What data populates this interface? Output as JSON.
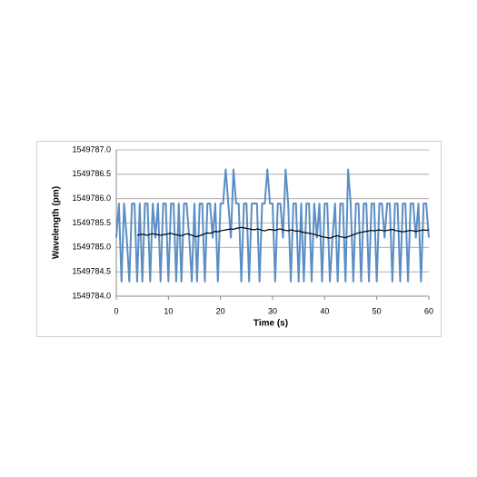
{
  "chart_data": {
    "type": "line",
    "x_label": "Time (s)",
    "y_label": "Wavelength (pm)",
    "x": [
      0,
      0.5,
      1,
      1.5,
      2,
      2.5,
      3,
      3.5,
      4,
      4.5,
      5,
      5.5,
      6,
      6.5,
      7,
      7.5,
      8,
      8.5,
      9,
      9.5,
      10,
      10.5,
      11,
      11.5,
      12,
      12.5,
      13,
      13.5,
      14,
      14.5,
      15,
      15.5,
      16,
      16.5,
      17,
      17.5,
      18,
      18.5,
      19,
      19.5,
      20,
      20.5,
      21,
      21.5,
      22,
      22.5,
      23,
      23.5,
      24,
      24.5,
      25,
      25.5,
      26,
      26.5,
      27,
      27.5,
      28,
      28.5,
      29,
      29.5,
      30,
      30.5,
      31,
      31.5,
      32,
      32.5,
      33,
      33.5,
      34,
      34.5,
      35,
      35.5,
      36,
      36.5,
      37,
      37.5,
      38,
      38.5,
      39,
      39.5,
      40,
      40.5,
      41,
      41.5,
      42,
      42.5,
      43,
      43.5,
      44,
      44.5,
      45,
      45.5,
      46,
      46.5,
      47,
      47.5,
      48,
      48.5,
      49,
      49.5,
      50,
      50.5,
      51,
      51.5,
      52,
      52.5,
      53,
      53.5,
      54,
      54.5,
      55,
      55.5,
      56,
      56.5,
      57,
      57.5,
      58,
      58.5,
      59,
      59.5,
      60
    ],
    "series": [
      {
        "color": "#5b8ec4",
        "width": 2,
        "values": [
          1549785.2,
          1549785.9,
          1549784.3,
          1549785.9,
          1549785.2,
          1549784.3,
          1549785.9,
          1549785.9,
          1549784.3,
          1549785.9,
          1549784.3,
          1549785.9,
          1549785.9,
          1549784.3,
          1549785.9,
          1549785.2,
          1549785.9,
          1549784.3,
          1549785.9,
          1549785.9,
          1549784.3,
          1549785.9,
          1549785.9,
          1549784.3,
          1549785.9,
          1549784.3,
          1549785.9,
          1549785.9,
          1549785.2,
          1549784.3,
          1549785.9,
          1549784.3,
          1549785.9,
          1549785.9,
          1549784.3,
          1549785.9,
          1549785.9,
          1549785.2,
          1549785.9,
          1549784.3,
          1549785.9,
          1549785.9,
          1549786.6,
          1549785.9,
          1549785.2,
          1549786.6,
          1549785.9,
          1549785.9,
          1549784.3,
          1549785.9,
          1549785.9,
          1549784.3,
          1549785.9,
          1549785.9,
          1549785.9,
          1549784.3,
          1549785.9,
          1549785.9,
          1549786.6,
          1549785.9,
          1549785.9,
          1549784.3,
          1549785.9,
          1549785.9,
          1549785.2,
          1549786.6,
          1549785.9,
          1549784.3,
          1549785.9,
          1549785.9,
          1549784.3,
          1549785.9,
          1549784.3,
          1549785.9,
          1549785.9,
          1549784.3,
          1549785.9,
          1549785.2,
          1549785.9,
          1549784.3,
          1549785.9,
          1549785.9,
          1549784.3,
          1549785.2,
          1549785.9,
          1549784.3,
          1549785.9,
          1549785.9,
          1549784.3,
          1549786.6,
          1549785.9,
          1549784.3,
          1549785.9,
          1549785.9,
          1549784.3,
          1549785.9,
          1549785.9,
          1549784.3,
          1549785.9,
          1549785.9,
          1549784.3,
          1549785.9,
          1549785.9,
          1549785.2,
          1549785.9,
          1549785.9,
          1549784.3,
          1549785.9,
          1549785.9,
          1549784.3,
          1549785.9,
          1549785.9,
          1549784.3,
          1549785.9,
          1549785.9,
          1549785.2,
          1549785.9,
          1549784.3,
          1549785.9,
          1549785.9,
          1549785.2
        ]
      },
      {
        "color": "#000000",
        "width": 1.2,
        "values": [
          null,
          null,
          null,
          null,
          null,
          null,
          null,
          null,
          1549785.25,
          1549785.26,
          1549785.27,
          1549785.26,
          1549785.25,
          1549785.27,
          1549785.28,
          1549785.27,
          1549785.26,
          1549785.25,
          1549785.26,
          1549785.27,
          1549785.28,
          1549785.29,
          1549785.27,
          1549785.26,
          1549785.25,
          1549785.24,
          1549785.26,
          1549785.28,
          1549785.27,
          1549785.25,
          1549785.23,
          1549785.22,
          1549785.24,
          1549785.26,
          1549785.28,
          1549785.3,
          1549785.29,
          1549785.31,
          1549785.33,
          1549785.32,
          1549785.34,
          1549785.35,
          1549785.36,
          1549785.37,
          1549785.38,
          1549785.37,
          1549785.39,
          1549785.4,
          1549785.41,
          1549785.4,
          1549785.39,
          1549785.38,
          1549785.37,
          1549785.36,
          1549785.38,
          1549785.37,
          1549785.35,
          1549785.34,
          1549785.36,
          1549785.37,
          1549785.36,
          1549785.35,
          1549785.37,
          1549785.38,
          1549785.36,
          1549785.35,
          1549785.34,
          1549785.36,
          1549785.35,
          1549785.33,
          1549785.34,
          1549785.32,
          1549785.31,
          1549785.3,
          1549785.29,
          1549785.28,
          1549785.27,
          1549785.25,
          1549785.24,
          1549785.22,
          1549785.21,
          1549785.2,
          1549785.19,
          1549785.21,
          1549785.23,
          1549785.24,
          1549785.22,
          1549785.21,
          1549785.2,
          1549785.22,
          1549785.24,
          1549785.26,
          1549785.28,
          1549785.3,
          1549785.31,
          1549785.32,
          1549785.33,
          1549785.34,
          1549785.35,
          1549785.34,
          1549785.35,
          1549785.36,
          1549785.35,
          1549785.34,
          1549785.35,
          1549785.36,
          1549785.37,
          1549785.35,
          1549785.34,
          1549785.33,
          1549785.32,
          1549785.33,
          1549785.34,
          1549785.35,
          1549785.34,
          1549785.33,
          1549785.34,
          1549785.35,
          1549785.36,
          1549785.35,
          1549785.36
        ]
      }
    ],
    "xlim": [
      0,
      60
    ],
    "xticks": [
      0,
      10,
      20,
      30,
      40,
      50,
      60
    ],
    "ylim": [
      1549784,
      1549787
    ],
    "yticks": [
      {
        "value": 1549784,
        "label": "1549784.0"
      },
      {
        "value": 1549784.5,
        "label": "1549784.5"
      },
      {
        "value": 1549785,
        "label": "1549785.0"
      },
      {
        "value": 1549785.5,
        "label": "1549785.5"
      },
      {
        "value": 1549786,
        "label": "1549786.0"
      },
      {
        "value": 1549786.5,
        "label": "1549786.5"
      },
      {
        "value": 1549787,
        "label": "1549787.0"
      }
    ],
    "grid": true
  }
}
